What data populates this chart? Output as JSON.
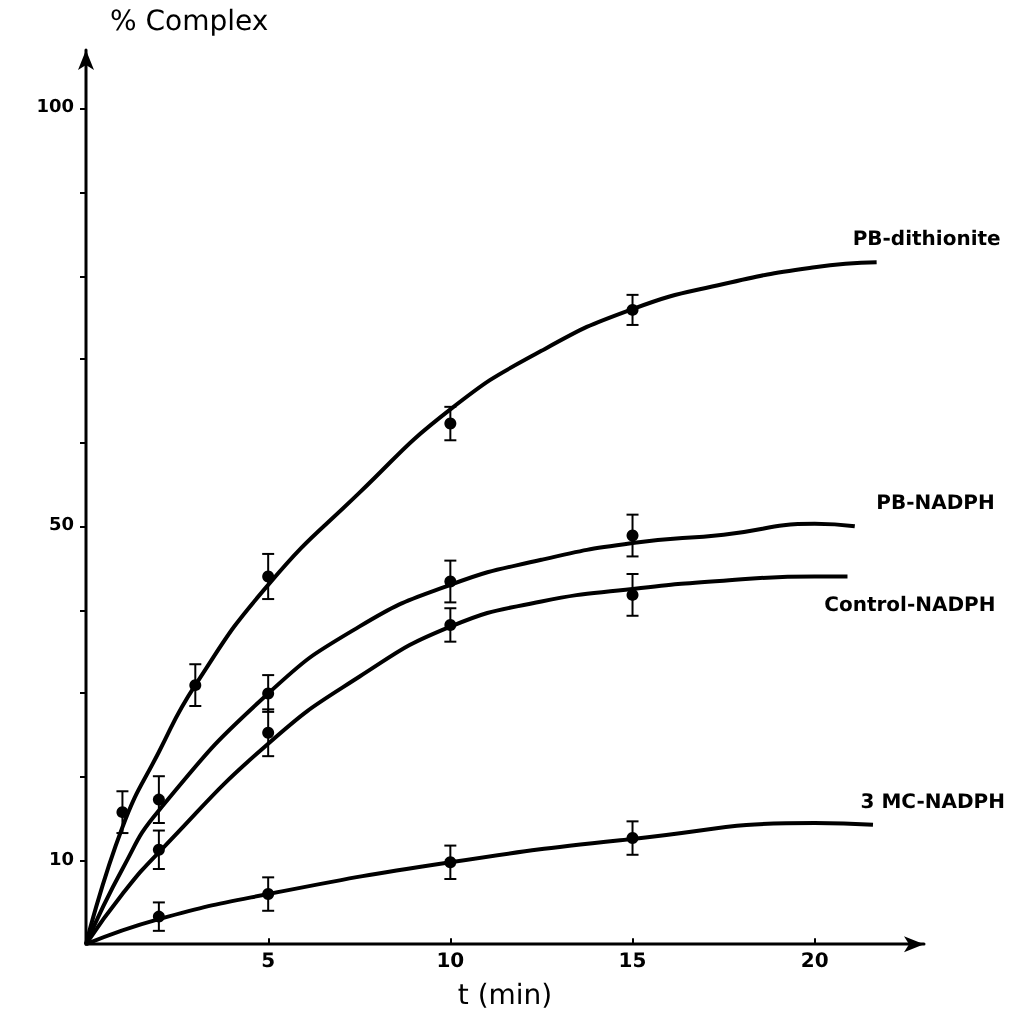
{
  "chart_data": {
    "type": "line",
    "ylabel": "% Complex",
    "xlabel": "t (min)",
    "xlim": [
      0,
      23
    ],
    "ylim": [
      0,
      107
    ],
    "xticks": [
      5,
      10,
      15,
      20
    ],
    "yticks": [
      {
        "value": 10,
        "label": "10"
      },
      {
        "value": 20,
        "label": null
      },
      {
        "value": 30,
        "label": null
      },
      {
        "value": 40,
        "label": null
      },
      {
        "value": 50,
        "label": "50"
      },
      {
        "value": 60,
        "label": null
      },
      {
        "value": 70,
        "label": null
      },
      {
        "value": 80,
        "label": null
      },
      {
        "value": 90,
        "label": null
      },
      {
        "value": 100,
        "label": "100"
      }
    ],
    "grid": false,
    "legend": false,
    "series": [
      {
        "name": "PB-dithionite",
        "marker": "none",
        "color": "#000000",
        "x": [
          0,
          1,
          2,
          3,
          5,
          7.5,
          10,
          12.5,
          15,
          17.5,
          20,
          21.7
        ],
        "values": [
          0,
          14,
          23,
          31,
          43,
          54,
          64,
          71,
          76,
          79,
          81,
          81.6
        ]
      },
      {
        "name": "PB-NADPH",
        "marker": "none",
        "color": "#000000",
        "x": [
          0,
          1,
          2,
          5,
          7.5,
          10,
          12.5,
          15,
          17.5,
          20,
          21.1
        ],
        "values": [
          0,
          9,
          16,
          30,
          38,
          43,
          46,
          48,
          49,
          50.3,
          50
        ]
      },
      {
        "name": "Control-NADPH",
        "marker": "none",
        "color": "#000000",
        "x": [
          0,
          1,
          2,
          5,
          7.5,
          10,
          12.5,
          15,
          17.5,
          20,
          20.9
        ],
        "values": [
          0,
          6,
          11,
          24,
          32,
          38,
          41,
          42.5,
          43.5,
          44,
          44
        ]
      },
      {
        "name": "3 MC-NADPH",
        "marker": "none",
        "color": "#000000",
        "x": [
          0,
          2,
          5,
          10,
          15,
          20,
          21.6
        ],
        "values": [
          0,
          3,
          6,
          9.8,
          12.6,
          14.5,
          14.3
        ]
      },
      {
        "type": "scatter",
        "marker": "circle",
        "color": "#000000",
        "x": [
          1,
          3,
          5,
          10,
          15
        ],
        "values": [
          15.8,
          31,
          44,
          62.3,
          75.9
        ],
        "errors": [
          2.5,
          2.5,
          2.7,
          2,
          1.8
        ]
      },
      {
        "type": "scatter",
        "marker": "circle",
        "color": "#000000",
        "x": [
          2,
          5,
          10,
          15
        ],
        "values": [
          17.3,
          30,
          43.4,
          48.9
        ],
        "errors": [
          2.8,
          2.2,
          2.5,
          2.5
        ]
      },
      {
        "type": "scatter",
        "marker": "circle",
        "color": "#000000",
        "x": [
          2,
          5,
          10,
          15
        ],
        "values": [
          11.3,
          25.3,
          38.2,
          41.8
        ],
        "errors": [
          2.3,
          2.8,
          2,
          2.5
        ]
      },
      {
        "type": "scatter",
        "marker": "circle",
        "color": "#000000",
        "x": [
          2,
          5,
          10,
          15
        ],
        "values": [
          3.3,
          6,
          9.8,
          12.7
        ],
        "errors": [
          1.7,
          2,
          2,
          2
        ]
      }
    ]
  }
}
